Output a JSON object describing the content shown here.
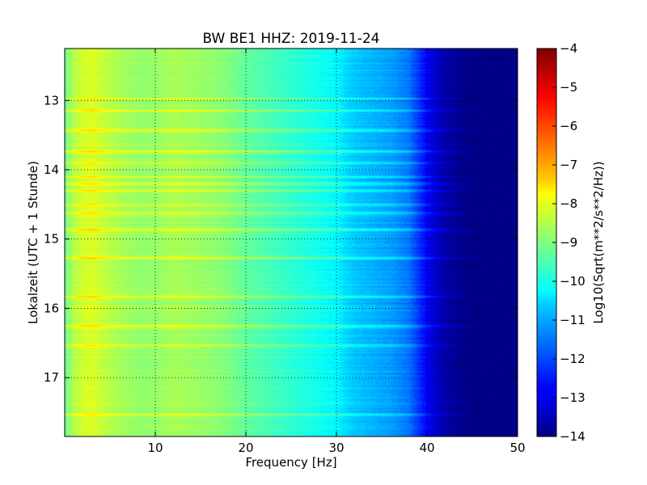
{
  "chart_data": {
    "type": "heatmap",
    "title": "BW BE1 HHZ: 2019-11-24",
    "xlabel": "Frequency [Hz]",
    "ylabel": "Lokalzeit (UTC + 1 Stunde)",
    "xlim": [
      0,
      50
    ],
    "ylim": [
      12.25,
      17.85
    ],
    "y_inverted": true,
    "grid": true,
    "x_ticks": [
      10,
      20,
      30,
      40,
      50
    ],
    "y_ticks": [
      13,
      14,
      15,
      16,
      17
    ],
    "colormap": "jet",
    "colorbar": {
      "label": "Log10(Sqrt(m**2/s**2/Hz))",
      "range": [
        -14,
        -4
      ],
      "ticks": [
        -4,
        -5,
        -6,
        -7,
        -8,
        -9,
        -10,
        -11,
        -12,
        -13,
        -14
      ]
    },
    "spectrum_profile": {
      "frequency_hz": [
        0,
        1,
        2,
        3,
        4,
        6,
        8,
        10,
        12,
        14,
        16,
        18,
        20,
        22,
        24,
        26,
        28,
        30,
        31,
        32,
        34,
        36,
        38,
        39,
        40,
        41,
        42,
        44,
        45,
        46,
        48,
        50
      ],
      "log10_amplitude": [
        -9.2,
        -8.5,
        -8.2,
        -8.1,
        -8.3,
        -8.6,
        -8.8,
        -8.8,
        -8.6,
        -8.7,
        -8.8,
        -9.0,
        -9.3,
        -9.5,
        -9.7,
        -9.9,
        -10.1,
        -10.3,
        -10.6,
        -10.8,
        -11.0,
        -11.2,
        -11.6,
        -12.2,
        -12.8,
        -13.3,
        -13.6,
        -13.9,
        -14.0,
        -14.0,
        -14.0,
        -14.0
      ]
    },
    "bright_bands_hour": [
      12.97,
      13.14,
      13.43,
      13.73,
      13.9,
      14.1,
      14.2,
      14.3,
      14.5,
      14.62,
      14.86,
      15.27,
      15.83,
      16.25,
      16.53,
      17.53
    ]
  }
}
